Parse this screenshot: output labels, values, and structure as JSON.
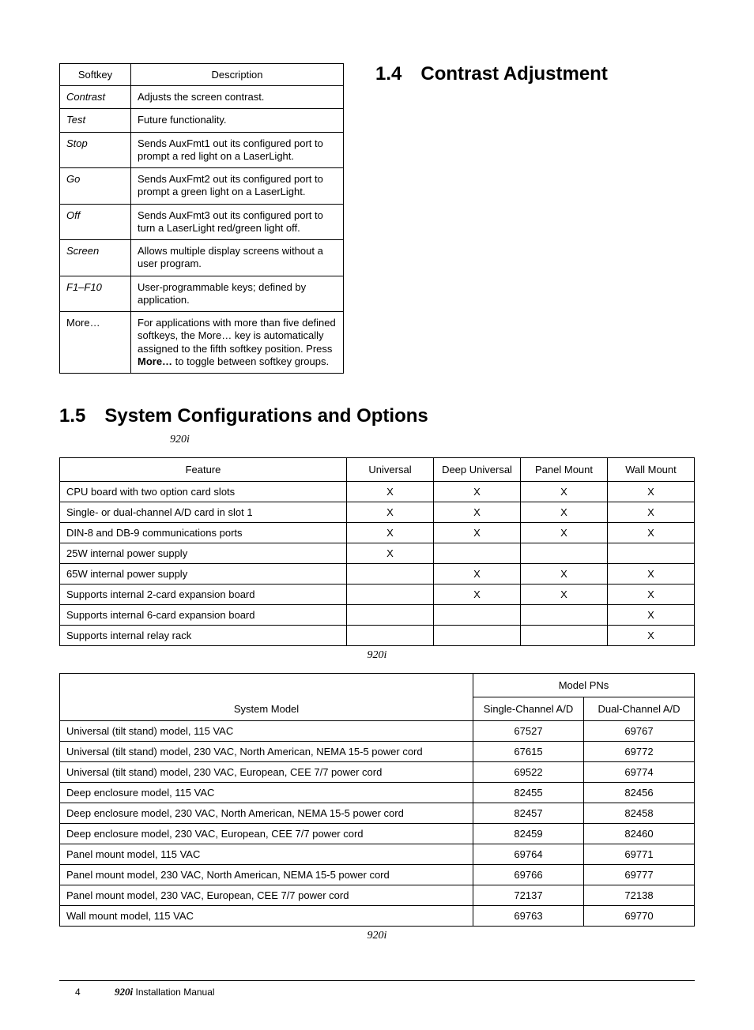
{
  "sections": {
    "contrast": {
      "num": "1.4",
      "title": "Contrast Adjustment"
    },
    "syscfg": {
      "num": "1.5",
      "title": "System Configurations and Options"
    }
  },
  "captions": {
    "syscfg_sub": "920i",
    "features_after": "920i",
    "pn_after": "920i"
  },
  "softkey_table": {
    "headers": {
      "col1": "Softkey",
      "col2": "Description"
    },
    "rows": [
      {
        "k": "Contrast",
        "d": "Adjusts the screen contrast."
      },
      {
        "k": "Test",
        "d": "Future functionality."
      },
      {
        "k": "Stop",
        "d": "Sends AuxFmt1 out its configured port to prompt a red light on a LaserLight."
      },
      {
        "k": "Go",
        "d": "Sends AuxFmt2 out its configured port to prompt a green light on a LaserLight."
      },
      {
        "k": "Off",
        "d": "Sends AuxFmt3 out its configured port to turn a LaserLight red/green light off."
      },
      {
        "k": "Screen",
        "d": "Allows multiple display screens without a user program."
      },
      {
        "k": "F1–F10",
        "d": "User-programmable keys; defined by application."
      },
      {
        "k": "More…",
        "d_pre": "For applications with more than five defined softkeys, the More… key is automatically assigned to the fifth softkey position. Press ",
        "d_bold": "More…",
        "d_post": " to toggle between softkey groups."
      }
    ]
  },
  "features_table": {
    "headers": {
      "feature": "Feature",
      "c1": "Universal",
      "c2": "Deep Universal",
      "c3": "Panel Mount",
      "c4": "Wall Mount"
    },
    "rows": [
      {
        "f": "CPU board with two option card slots",
        "v": [
          "X",
          "X",
          "X",
          "X"
        ]
      },
      {
        "f": "Single- or dual-channel A/D card in slot 1",
        "v": [
          "X",
          "X",
          "X",
          "X"
        ]
      },
      {
        "f": "DIN-8 and DB-9 communications ports",
        "v": [
          "X",
          "X",
          "X",
          "X"
        ]
      },
      {
        "f": "25W internal power supply",
        "v": [
          "X",
          "",
          "",
          ""
        ]
      },
      {
        "f": "65W internal power supply",
        "v": [
          "",
          "X",
          "X",
          "X"
        ]
      },
      {
        "f": "Supports internal 2-card expansion board",
        "v": [
          "",
          "X",
          "X",
          "X"
        ]
      },
      {
        "f": "Supports internal 6-card expansion board",
        "v": [
          "",
          "",
          "",
          "X"
        ]
      },
      {
        "f": "Supports internal relay rack",
        "v": [
          "",
          "",
          "",
          "X"
        ]
      }
    ]
  },
  "pn_table": {
    "headers": {
      "group": "Model PNs",
      "model": "System Model",
      "c1": "Single-Channel A/D",
      "c2": "Dual-Channel A/D"
    },
    "rows": [
      {
        "m": "Universal (tilt stand) model, 115 VAC",
        "p1": "67527",
        "p2": "69767"
      },
      {
        "m": "Universal (tilt stand) model, 230 VAC, North American, NEMA 15-5 power cord",
        "p1": "67615",
        "p2": "69772"
      },
      {
        "m": "Universal (tilt stand) model, 230 VAC, European, CEE 7/7 power cord",
        "p1": "69522",
        "p2": "69774"
      },
      {
        "m": "Deep enclosure model, 115 VAC",
        "p1": "82455",
        "p2": "82456"
      },
      {
        "m": "Deep enclosure model, 230 VAC, North American, NEMA 15-5 power cord",
        "p1": "82457",
        "p2": "82458"
      },
      {
        "m": "Deep enclosure model, 230 VAC, European, CEE 7/7 power cord",
        "p1": "82459",
        "p2": "82460"
      },
      {
        "m": "Panel mount model, 115 VAC",
        "p1": "69764",
        "p2": "69771"
      },
      {
        "m": "Panel mount model, 230 VAC, North American, NEMA 15-5 power cord",
        "p1": "69766",
        "p2": "69777"
      },
      {
        "m": "Panel mount model, 230 VAC, European, CEE 7/7 power cord",
        "p1": "72137",
        "p2": "72138"
      },
      {
        "m": "Wall mount model, 115 VAC",
        "p1": "69763",
        "p2": "69770"
      }
    ]
  },
  "footer": {
    "page": "4",
    "model": "920i",
    "title": " Installation Manual"
  }
}
